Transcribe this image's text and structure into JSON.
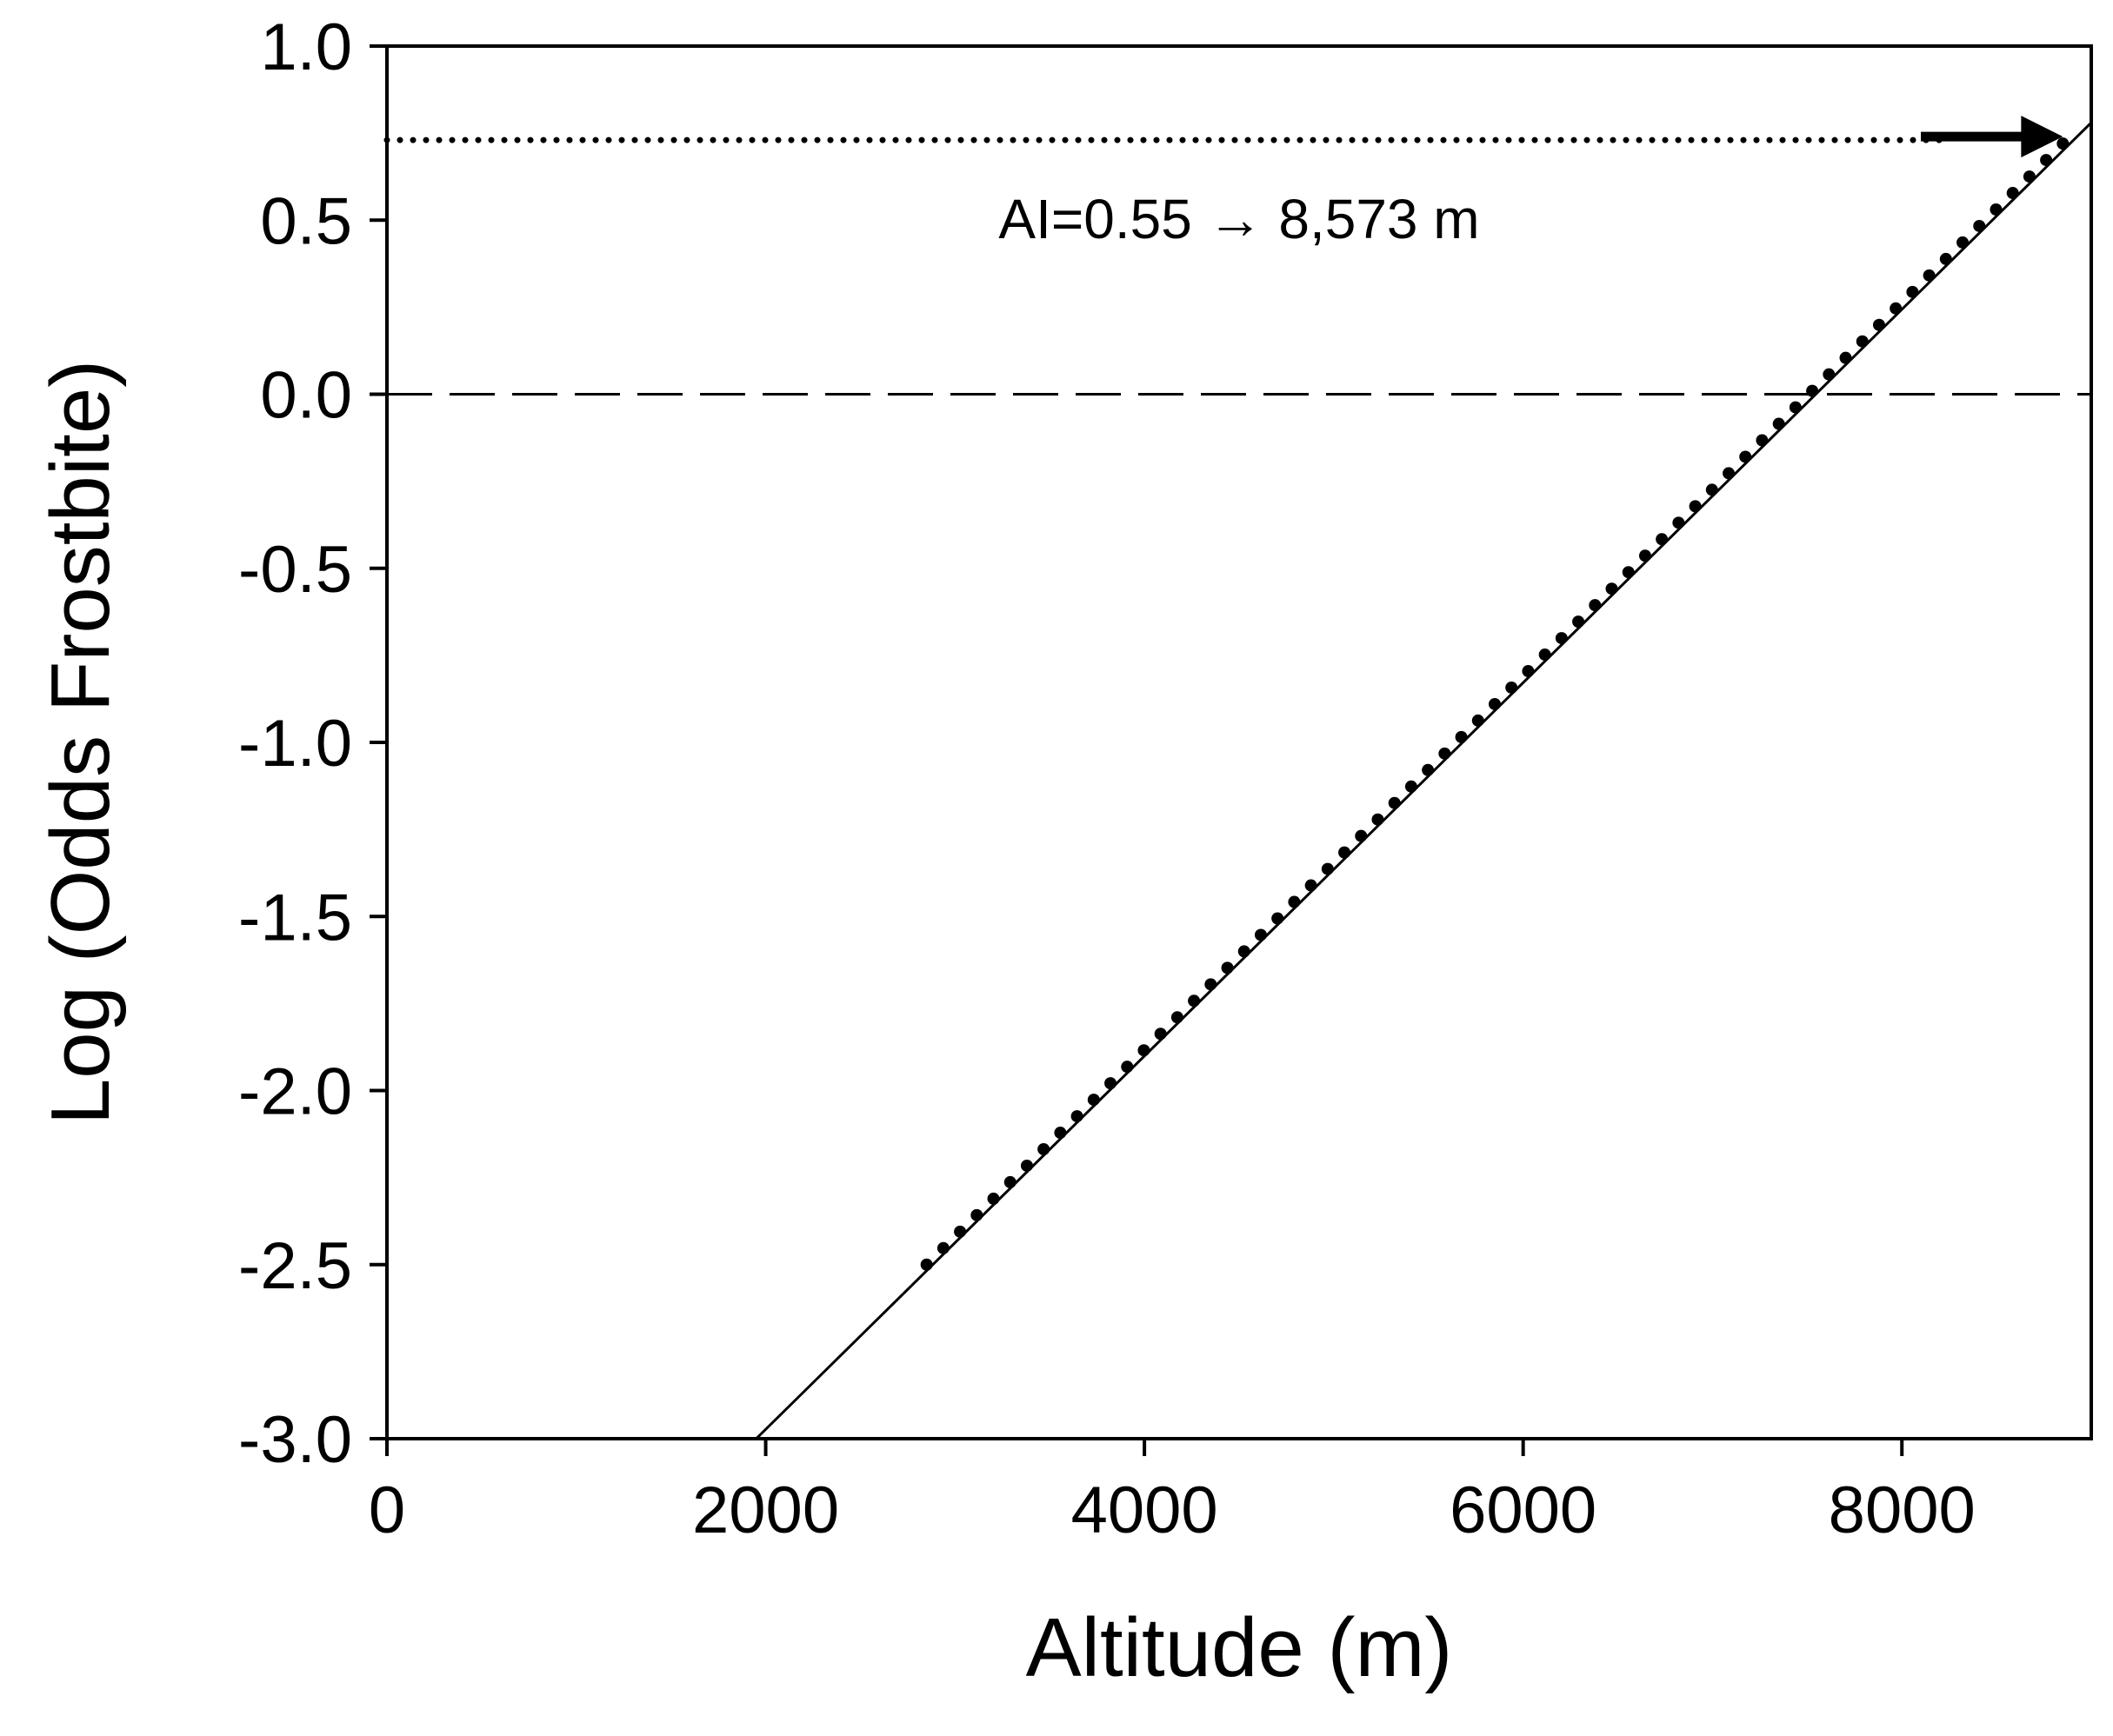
{
  "chart_data": {
    "type": "line",
    "title": "",
    "xlabel": "Altitude (m)",
    "ylabel": "Log (Odds Frostbite)",
    "xlim": [
      0,
      9000
    ],
    "ylim": [
      -3.0,
      1.0
    ],
    "x_ticks": [
      0,
      2000,
      4000,
      6000,
      8000
    ],
    "x_tick_labels": [
      "0",
      "2000",
      "4000",
      "6000",
      "8000"
    ],
    "y_ticks": [
      1.0,
      0.5,
      0.0,
      -0.5,
      -1.0,
      -1.5,
      -2.0,
      -2.5,
      -3.0
    ],
    "y_tick_labels": [
      "1.0",
      "0.5",
      "0.0",
      "-0.5",
      "-1.0",
      "-1.5",
      "-2.0",
      "-2.5",
      "-3.0"
    ],
    "grid": false,
    "legend": "none",
    "series": [
      {
        "style": "solid line",
        "x": [
          1950,
          9000
        ],
        "y": [
          -3.0,
          0.78
        ]
      },
      {
        "style": "dotted markers",
        "x": [
          2850,
          8850
        ],
        "y": [
          -2.5,
          0.72
        ]
      }
    ],
    "reference_lines": [
      {
        "style": "dashed",
        "y": 0.0
      },
      {
        "style": "dotted",
        "y": 0.73,
        "x_range": [
          0,
          8200
        ]
      }
    ],
    "arrow": {
      "x_from": 8100,
      "x_to": 8850,
      "y": 0.74
    },
    "annotations": [
      {
        "text": "AI=0.55 → 8,573 m",
        "x": 5800,
        "y": 0.5
      }
    ],
    "colors": {
      "ink": "#000000",
      "background": "#ffffff"
    }
  }
}
